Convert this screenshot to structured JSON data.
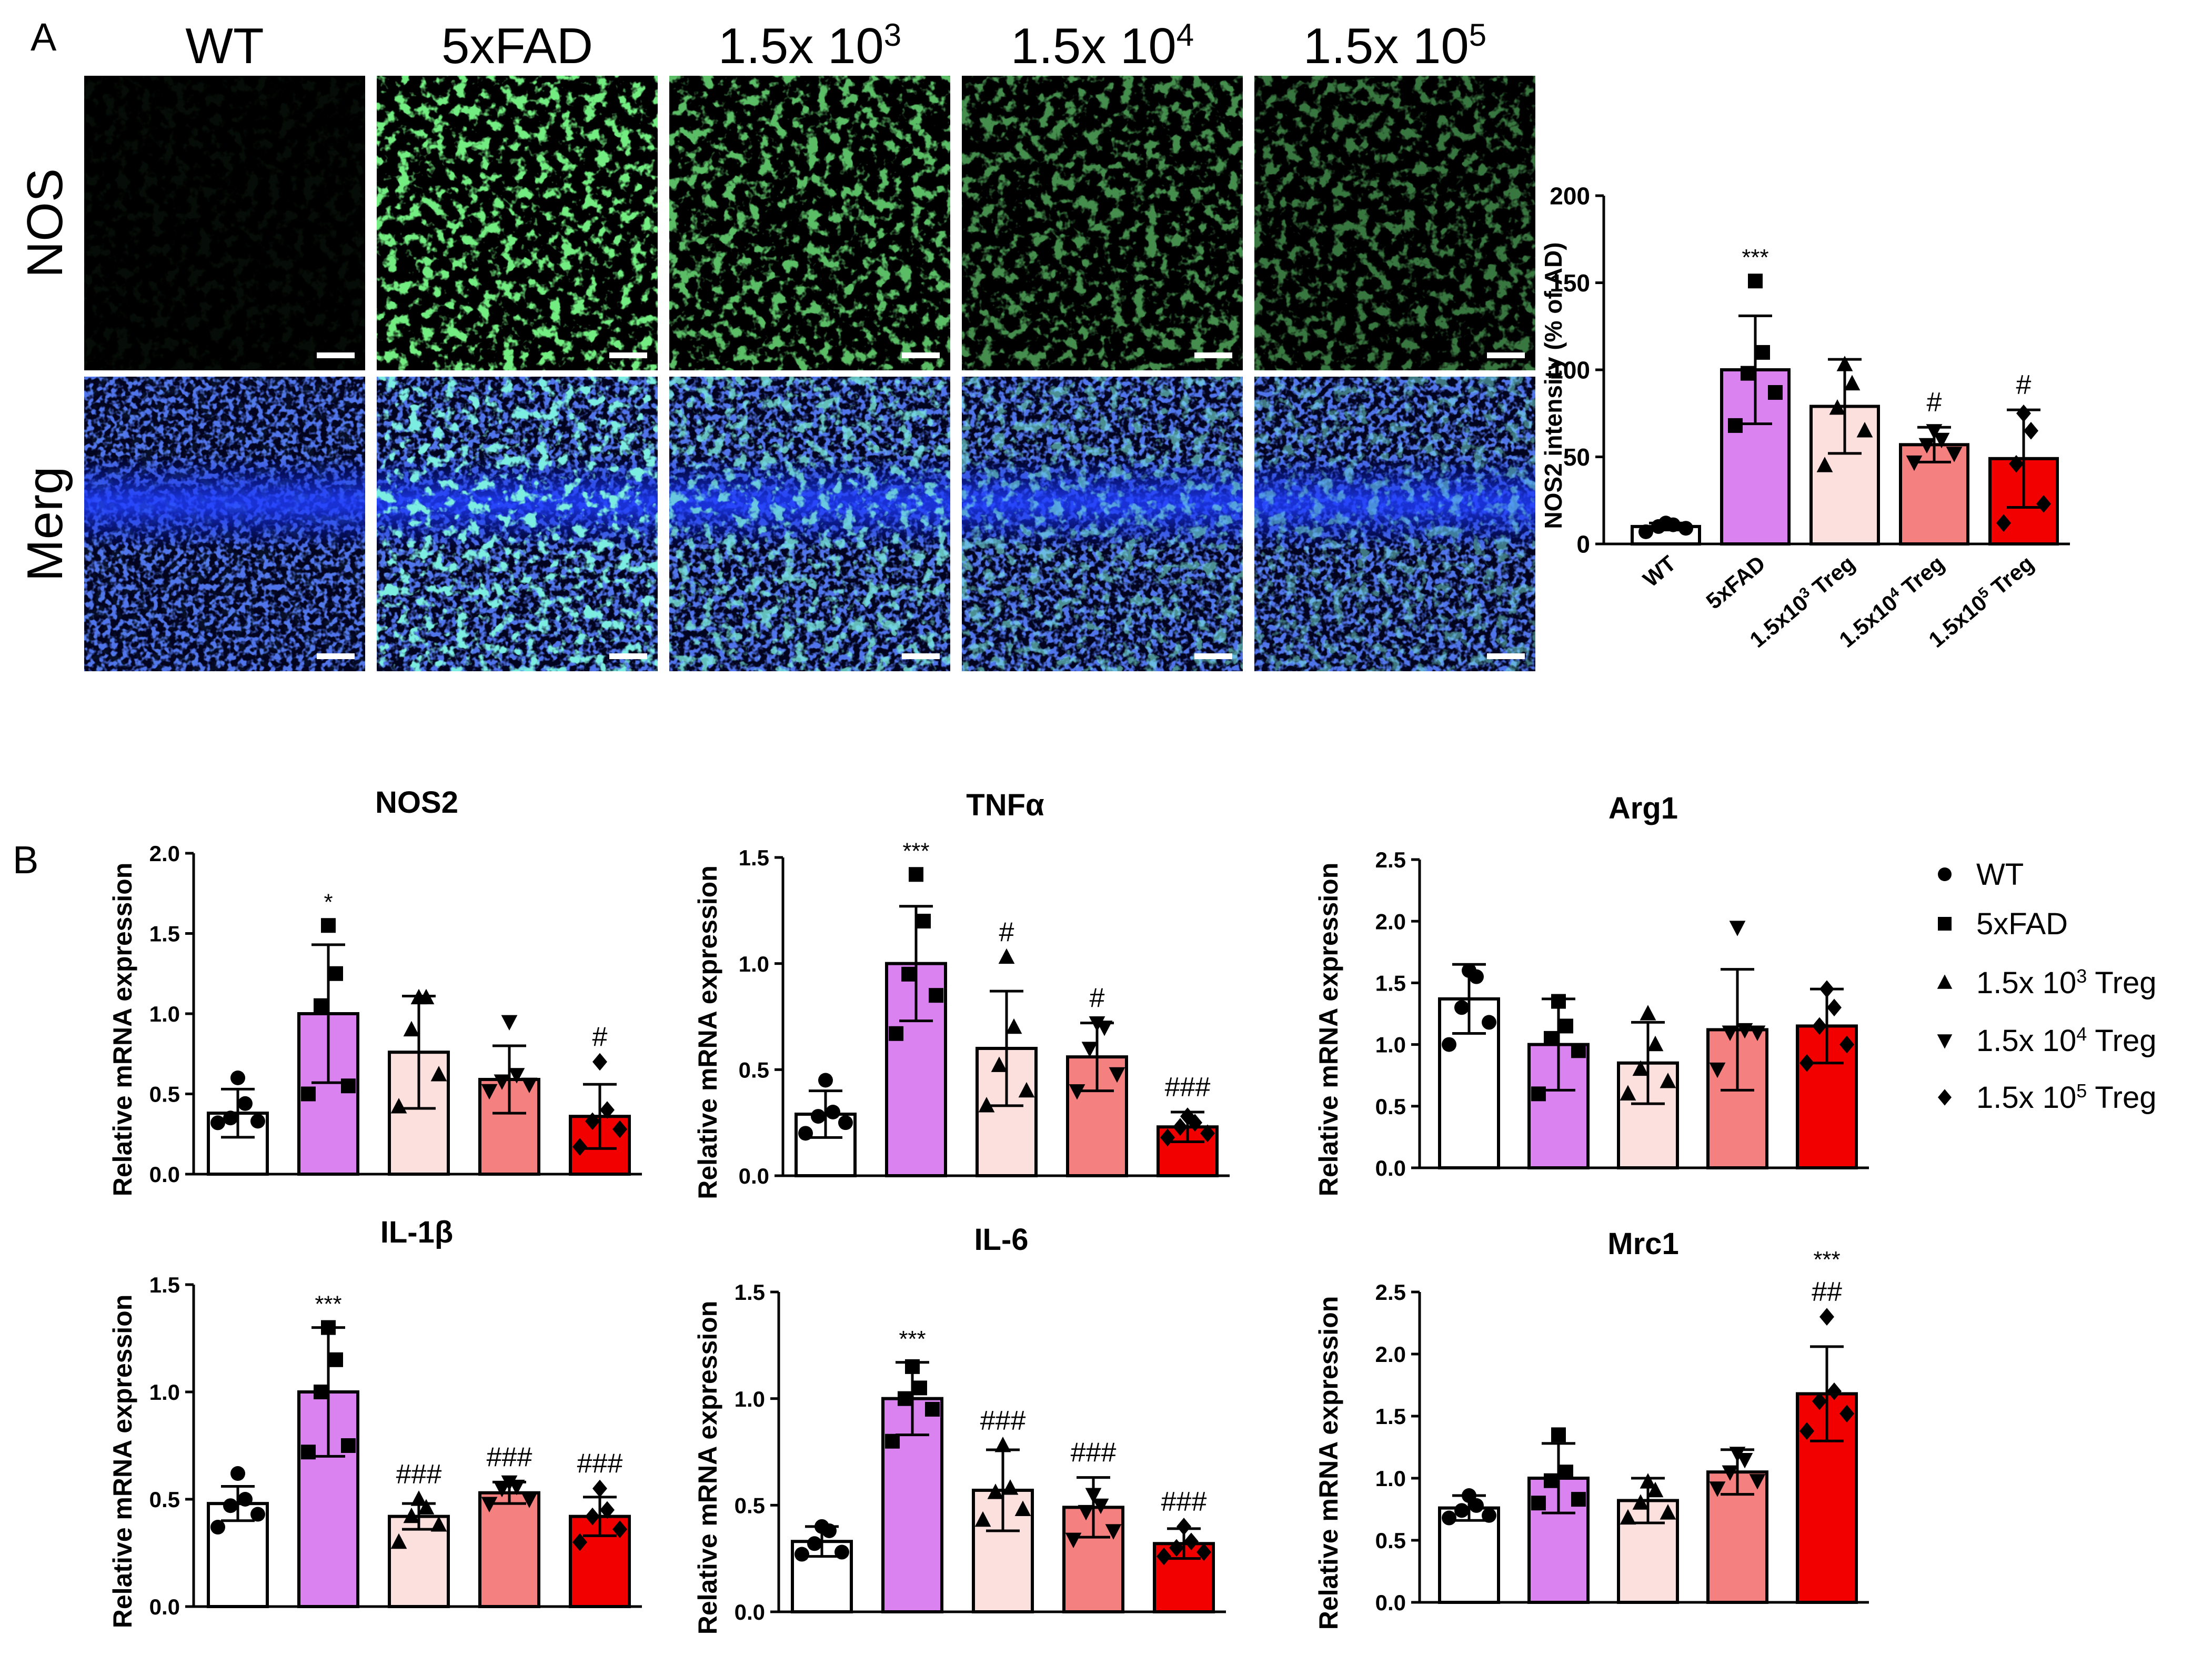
{
  "panels": {
    "a": "A",
    "b": "B"
  },
  "micrograph": {
    "columns": [
      "WT",
      "5xFAD",
      "1.5x 10",
      "1.5x 10",
      "1.5x 10"
    ],
    "column_sups": [
      "",
      "",
      "3",
      "4",
      "5"
    ],
    "rows": [
      "NOS",
      "Merg"
    ],
    "nos_intensity": [
      0.05,
      1.0,
      0.8,
      0.6,
      0.5
    ]
  },
  "colors": {
    "WT": "#ffffff",
    "5xFAD": "#da82f0",
    "t3": "#fce0de",
    "t4": "#f58080",
    "t5": "#f20000",
    "green": "#2fd43a",
    "blue": "#1e3cf0",
    "cyan": "#40d0d8"
  },
  "legend": {
    "items": [
      {
        "label": "WT",
        "sup": "",
        "suffix": "",
        "marker": "circle"
      },
      {
        "label": "5xFAD",
        "sup": "",
        "suffix": "",
        "marker": "square"
      },
      {
        "label": "1.5x 10",
        "sup": "3",
        "suffix": " Treg",
        "marker": "triangle"
      },
      {
        "label": "1.5x 10",
        "sup": "4",
        "suffix": " Treg",
        "marker": "triangle-down"
      },
      {
        "label": "1.5x 10",
        "sup": "5",
        "suffix": " Treg",
        "marker": "diamond"
      }
    ]
  },
  "chart_data": [
    {
      "id": "nos2_intensity",
      "type": "bar",
      "title": "",
      "ylabel": "NOS2 intensity (% of AD)",
      "ylim": [
        0,
        200
      ],
      "yticks": [
        "0",
        "50",
        "100",
        "150",
        "200"
      ],
      "categories": [
        "WT",
        "5xFAD",
        "1.5x10",
        "1.5x10",
        "1.5x10"
      ],
      "category_sups": [
        "",
        "",
        "3",
        "4",
        "5"
      ],
      "category_suffix": [
        "",
        "",
        " Treg",
        " Treg",
        " Treg"
      ],
      "values": [
        10,
        100,
        79,
        57,
        49
      ],
      "errors": [
        2,
        31,
        27,
        10,
        28
      ],
      "annotations": [
        "",
        "***",
        "",
        "#",
        "#"
      ],
      "points": [
        [
          7,
          9,
          10,
          11,
          12
        ],
        [
          68,
          87,
          98,
          110,
          151
        ],
        [
          45,
          65,
          78,
          92,
          103
        ],
        [
          47,
          52,
          57,
          60,
          65
        ],
        [
          12,
          23,
          46,
          65,
          75
        ]
      ]
    },
    {
      "id": "nos2_mrna",
      "type": "bar",
      "title": "NOS2",
      "ylabel": "Relative mRNA expression",
      "ylim": [
        0,
        2.0
      ],
      "yticks": [
        "0.0",
        "0.5",
        "1.0",
        "1.5",
        "2.0"
      ],
      "categories": [
        "WT",
        "5xFAD",
        "1.5x 10^3 Treg",
        "1.5x 10^4 Treg",
        "1.5x 10^5 Treg"
      ],
      "values": [
        0.38,
        1.0,
        0.76,
        0.59,
        0.36
      ],
      "errors": [
        0.15,
        0.43,
        0.35,
        0.21,
        0.2
      ],
      "annotations": [
        "",
        "*",
        "",
        "",
        "#"
      ],
      "points": [
        [
          0.32,
          0.33,
          0.35,
          0.44,
          0.6
        ],
        [
          0.5,
          0.55,
          1.05,
          1.25,
          1.55
        ],
        [
          0.42,
          0.62,
          0.9,
          1.1,
          1.1
        ],
        [
          0.52,
          0.56,
          0.58,
          0.62,
          0.95
        ],
        [
          0.17,
          0.28,
          0.33,
          0.4,
          0.7
        ]
      ]
    },
    {
      "id": "tnfa_mrna",
      "type": "bar",
      "title": "TNFα",
      "ylabel": "Relative mRNA expression",
      "ylim": [
        0,
        1.5
      ],
      "yticks": [
        "0.0",
        "0.5",
        "1.0",
        "1.5"
      ],
      "categories": [
        "WT",
        "5xFAD",
        "1.5x 10^3 Treg",
        "1.5x 10^4 Treg",
        "1.5x 10^5 Treg"
      ],
      "values": [
        0.29,
        1.0,
        0.6,
        0.56,
        0.23
      ],
      "errors": [
        0.11,
        0.27,
        0.27,
        0.16,
        0.07
      ],
      "annotations": [
        "",
        "***",
        "#",
        "#",
        "###"
      ],
      "points": [
        [
          0.2,
          0.25,
          0.28,
          0.3,
          0.45
        ],
        [
          0.67,
          0.85,
          0.95,
          1.2,
          1.42
        ],
        [
          0.33,
          0.4,
          0.52,
          0.7,
          1.03
        ],
        [
          0.4,
          0.48,
          0.6,
          0.7,
          0.72
        ],
        [
          0.18,
          0.2,
          0.23,
          0.25,
          0.28
        ]
      ]
    },
    {
      "id": "arg1_mrna",
      "type": "bar",
      "title": "Arg1",
      "ylabel": "Relative mRNA expression",
      "ylim": [
        0,
        2.5
      ],
      "yticks": [
        "0.0",
        "0.5",
        "1.0",
        "1.5",
        "2.0",
        "2.5"
      ],
      "categories": [
        "WT",
        "5xFAD",
        "1.5x 10^3 Treg",
        "1.5x 10^4 Treg",
        "1.5x 10^5 Treg"
      ],
      "values": [
        1.37,
        1.0,
        0.85,
        1.12,
        1.15
      ],
      "errors": [
        0.28,
        0.37,
        0.33,
        0.49,
        0.3
      ],
      "annotations": [
        "",
        "",
        "",
        "",
        ""
      ],
      "points": [
        [
          1.0,
          1.18,
          1.3,
          1.55,
          1.6
        ],
        [
          0.6,
          0.95,
          1.05,
          1.15,
          1.35
        ],
        [
          0.6,
          0.7,
          0.8,
          1.0,
          1.25
        ],
        [
          0.8,
          1.1,
          1.1,
          1.12,
          1.95
        ],
        [
          0.85,
          1.0,
          1.15,
          1.3,
          1.45
        ]
      ]
    },
    {
      "id": "il1b_mrna",
      "type": "bar",
      "title": "IL-1β",
      "ylabel": "Relative mRNA expression",
      "ylim": [
        0,
        1.5
      ],
      "yticks": [
        "0.0",
        "0.5",
        "1.0",
        "1.5"
      ],
      "categories": [
        "WT",
        "5xFAD",
        "1.5x 10^3 Treg",
        "1.5x 10^4 Treg",
        "1.5x 10^5 Treg"
      ],
      "values": [
        0.48,
        1.0,
        0.42,
        0.53,
        0.42
      ],
      "errors": [
        0.08,
        0.3,
        0.06,
        0.05,
        0.09
      ],
      "annotations": [
        "",
        "***",
        "###",
        "###",
        "###"
      ],
      "points": [
        [
          0.37,
          0.43,
          0.47,
          0.5,
          0.62
        ],
        [
          0.72,
          0.75,
          1.0,
          1.15,
          1.3
        ],
        [
          0.3,
          0.38,
          0.42,
          0.46,
          0.5
        ],
        [
          0.48,
          0.5,
          0.55,
          0.56,
          0.58
        ],
        [
          0.3,
          0.36,
          0.42,
          0.45,
          0.55
        ]
      ]
    },
    {
      "id": "il6_mrna",
      "type": "bar",
      "title": "IL-6",
      "ylabel": "Relative mRNA expression",
      "ylim": [
        0,
        1.5
      ],
      "yticks": [
        "0.0",
        "0.5",
        "1.0",
        "1.5"
      ],
      "categories": [
        "WT",
        "5xFAD",
        "1.5x 10^3 Treg",
        "1.5x 10^4 Treg",
        "1.5x 10^5 Treg"
      ],
      "values": [
        0.33,
        1.0,
        0.57,
        0.49,
        0.32
      ],
      "errors": [
        0.07,
        0.17,
        0.19,
        0.14,
        0.07
      ],
      "annotations": [
        "",
        "***",
        "###",
        "###",
        "###"
      ],
      "points": [
        [
          0.27,
          0.28,
          0.32,
          0.38,
          0.4
        ],
        [
          0.8,
          0.95,
          1.0,
          1.05,
          1.15
        ],
        [
          0.43,
          0.48,
          0.56,
          0.58,
          0.78
        ],
        [
          0.34,
          0.38,
          0.47,
          0.5,
          0.55
        ],
        [
          0.26,
          0.28,
          0.3,
          0.33,
          0.4
        ]
      ]
    },
    {
      "id": "mrc1_mrna",
      "type": "bar",
      "title": "Mrc1",
      "ylabel": "Relative mRNA expression",
      "ylim": [
        0,
        2.5
      ],
      "yticks": [
        "0.0",
        "0.5",
        "1.0",
        "1.5",
        "2.0",
        "2.5"
      ],
      "categories": [
        "WT",
        "5xFAD",
        "1.5x 10^3 Treg",
        "1.5x 10^4 Treg",
        "1.5x 10^5 Treg"
      ],
      "values": [
        0.76,
        1.0,
        0.82,
        1.05,
        1.68
      ],
      "errors": [
        0.1,
        0.28,
        0.18,
        0.18,
        0.38
      ],
      "annotations": [
        "",
        "",
        "",
        "",
        "***\n##"
      ],
      "points": [
        [
          0.68,
          0.7,
          0.74,
          0.78,
          0.86
        ],
        [
          0.8,
          0.83,
          0.98,
          1.05,
          1.35
        ],
        [
          0.68,
          0.72,
          0.8,
          0.9,
          0.97
        ],
        [
          0.92,
          0.98,
          1.05,
          1.15,
          1.2
        ],
        [
          1.38,
          1.52,
          1.62,
          1.7,
          2.3
        ]
      ]
    }
  ]
}
